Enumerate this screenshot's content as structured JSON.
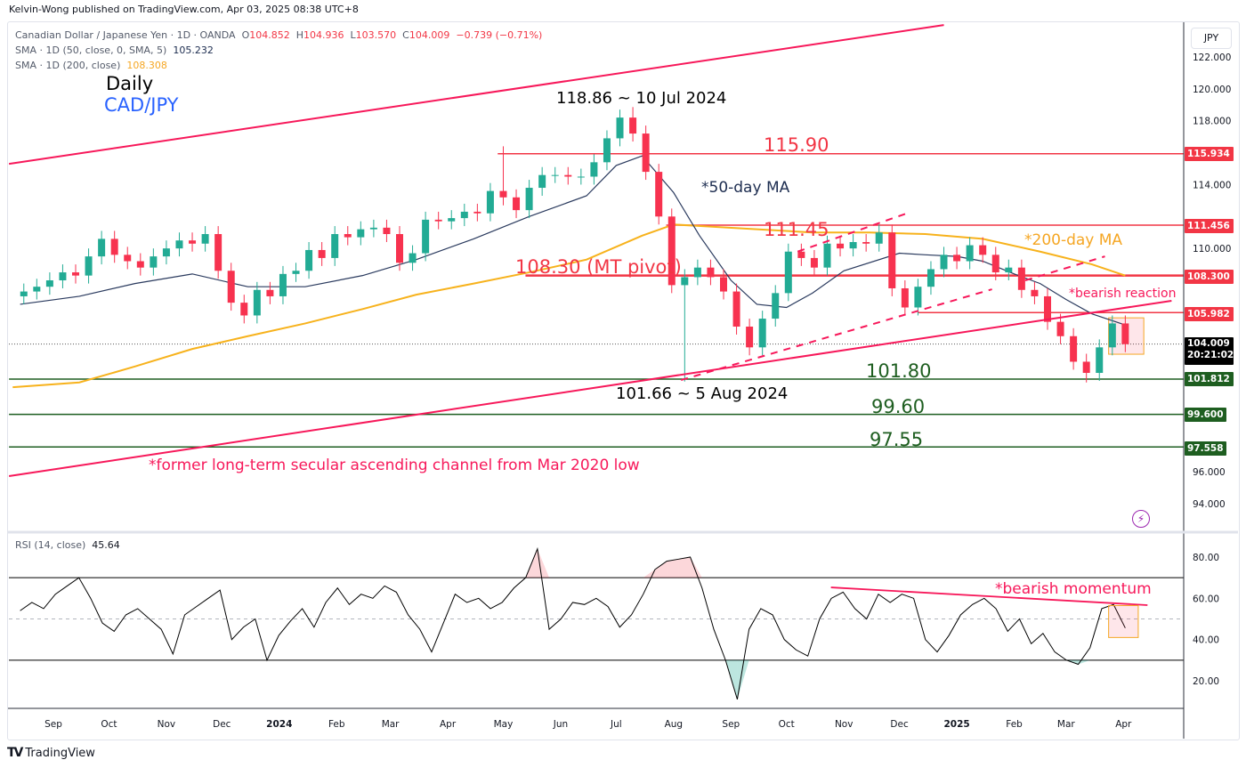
{
  "publisher": "Kelvin-Wong published on TradingView.com, Apr 03, 2025 08:38 UTC+8",
  "legend": {
    "symbol": "Canadian Dollar / Japanese Yen · 1D · OANDA",
    "o_label": "O",
    "o": "104.852",
    "h_label": "H",
    "h": "104.936",
    "l_label": "L",
    "l": "103.570",
    "c_label": "C",
    "c": "104.009",
    "change": "−0.739 (−0.71%)",
    "sma50_label": "SMA · 1D (50, close, 0, SMA, 5)",
    "sma50_value": "105.232",
    "sma200_label": "SMA · 1D (200, close)",
    "sma200_value": "108.308",
    "rsi_label": "RSI (14, close)",
    "rsi_value": "45.64"
  },
  "titles": {
    "timeframe": "Daily",
    "pair": "CAD/JPY"
  },
  "currency": "JPY",
  "annotations": {
    "high": "118.86 ~ 10 Jul 2024",
    "low": "101.66 ~ 5 Aug 2024",
    "lvl_115": "115.90",
    "lvl_111": "111.45",
    "lvl_108": "108.30 (MT pivot)",
    "lvl_101": "101.80",
    "lvl_99": "99.60",
    "lvl_97": "97.55",
    "ma50": "*50-day MA",
    "ma200": "*200-day MA",
    "bearish_reaction": "*bearish reaction",
    "channel": "*former long-term secular ascending channel from Mar 2020 low",
    "bearish_momentum": "*bearish momentum"
  },
  "price_badges": {
    "b115": "115.934",
    "b111": "111.456",
    "b108": "108.300",
    "b105": "105.982",
    "last": "104.009",
    "countdown": "20:21:02",
    "b101": "101.812",
    "b99": "99.600",
    "b97": "97.558"
  },
  "colors": {
    "up": "#22ab94",
    "down": "#f7324f",
    "sma50": "#2a3a5e",
    "sma200": "#f7b21c",
    "resist": "#f23645",
    "support": "#1e5e20",
    "channel": "#f7185a"
  },
  "branding": "TradingView",
  "chart_data": [
    {
      "type": "candlestick",
      "title": "CAD/JPY Daily (approx. weekly aggregation)",
      "week_start": "2023-08-14",
      "interval_days": 7,
      "first_open": 107.0,
      "closes": [
        107.3,
        107.6,
        108.0,
        108.5,
        108.3,
        109.5,
        110.6,
        109.6,
        109.2,
        108.8,
        109.5,
        110.0,
        110.5,
        110.3,
        110.9,
        108.6,
        106.6,
        105.8,
        107.4,
        107.0,
        108.4,
        108.6,
        109.9,
        109.4,
        110.9,
        110.7,
        111.2,
        111.3,
        110.9,
        109.1,
        109.7,
        111.8,
        111.7,
        111.9,
        112.3,
        112.2,
        113.6,
        113.2,
        112.4,
        113.8,
        114.6,
        114.6,
        114.5,
        114.5,
        115.4,
        116.9,
        118.2,
        117.2,
        114.8,
        112.0,
        107.7,
        108.2,
        108.8,
        108.2,
        107.3,
        105.1,
        103.8,
        105.6,
        107.2,
        109.8,
        109.4,
        108.8,
        110.3,
        110.0,
        110.4,
        110.3,
        111.0,
        107.5,
        106.3,
        107.6,
        108.7,
        109.6,
        109.2,
        110.2,
        109.6,
        108.5,
        108.8,
        107.4,
        107.0,
        105.4,
        104.5,
        102.9,
        102.2,
        103.8,
        105.3,
        104.0
      ],
      "extremes": {
        "2024-04-29": {
          "h": 116.4
        },
        "2024-07-08": {
          "h": 118.86
        },
        "2024-08-05": {
          "l": 101.66
        },
        "2025-03-10": {
          "l": 101.6
        }
      },
      "sma50": [
        [
          "2023-08-14",
          106.5
        ],
        [
          "2023-09-15",
          107.0
        ],
        [
          "2023-10-15",
          107.8
        ],
        [
          "2023-11-15",
          108.4
        ],
        [
          "2023-12-15",
          107.6
        ],
        [
          "2024-01-15",
          107.6
        ],
        [
          "2024-02-15",
          108.3
        ],
        [
          "2024-03-15",
          109.3
        ],
        [
          "2024-04-15",
          110.6
        ],
        [
          "2024-05-15",
          112.0
        ],
        [
          "2024-06-15",
          113.3
        ],
        [
          "2024-07-01",
          115.2
        ],
        [
          "2024-07-15",
          115.8
        ],
        [
          "2024-08-01",
          113.5
        ],
        [
          "2024-08-15",
          110.8
        ],
        [
          "2024-09-01",
          108.0
        ],
        [
          "2024-09-15",
          106.5
        ],
        [
          "2024-10-01",
          106.3
        ],
        [
          "2024-10-15",
          107.2
        ],
        [
          "2024-11-01",
          108.6
        ],
        [
          "2024-12-01",
          109.7
        ],
        [
          "2024-12-15",
          109.6
        ],
        [
          "2025-01-01",
          109.5
        ],
        [
          "2025-01-15",
          109.2
        ],
        [
          "2025-02-01",
          108.4
        ],
        [
          "2025-02-15",
          107.8
        ],
        [
          "2025-03-01",
          106.8
        ],
        [
          "2025-03-15",
          105.9
        ],
        [
          "2025-04-02",
          105.2
        ]
      ],
      "sma200": [
        [
          "2023-08-10",
          101.3
        ],
        [
          "2023-09-15",
          101.6
        ],
        [
          "2023-10-15",
          102.6
        ],
        [
          "2023-11-15",
          103.7
        ],
        [
          "2023-12-15",
          104.5
        ],
        [
          "2024-01-15",
          105.3
        ],
        [
          "2024-02-15",
          106.2
        ],
        [
          "2024-03-15",
          107.1
        ],
        [
          "2024-04-15",
          107.8
        ],
        [
          "2024-05-15",
          108.5
        ],
        [
          "2024-06-15",
          109.3
        ],
        [
          "2024-07-15",
          110.8
        ],
        [
          "2024-08-01",
          111.5
        ],
        [
          "2024-09-15",
          111.2
        ],
        [
          "2024-10-15",
          111.0
        ],
        [
          "2024-11-15",
          111.0
        ],
        [
          "2024-12-15",
          110.9
        ],
        [
          "2025-01-15",
          110.6
        ],
        [
          "2025-02-15",
          109.8
        ],
        [
          "2025-03-15",
          109.0
        ],
        [
          "2025-04-02",
          108.3
        ]
      ],
      "levels": [
        {
          "price": 115.934,
          "from": "2024-04-28",
          "kind": "resist"
        },
        {
          "price": 111.456,
          "from": "2024-07-28",
          "kind": "resist"
        },
        {
          "price": 108.3,
          "from": "2024-05-13",
          "kind": "resist",
          "bold": true
        },
        {
          "price": 105.982,
          "from": "2024-12-11",
          "kind": "resist"
        },
        {
          "price": 101.812,
          "from": "2023-08-08",
          "kind": "support"
        },
        {
          "price": 99.6,
          "from": "2023-08-08",
          "kind": "support"
        },
        {
          "price": 97.558,
          "from": "2023-08-08",
          "kind": "support"
        }
      ],
      "trendlines": [
        {
          "p1": [
            "2023-08-08",
            115.3
          ],
          "p2": [
            "2024-12-25",
            124.0
          ],
          "style": "solid"
        },
        {
          "p1": [
            "2023-08-08",
            95.73
          ],
          "p2": [
            "2025-04-27",
            106.72
          ],
          "style": "solid"
        },
        {
          "p1": [
            "2024-08-05",
            101.75
          ],
          "p2": [
            "2025-01-20",
            107.44
          ],
          "style": "dashed"
        },
        {
          "p1": [
            "2024-10-07",
            109.8
          ],
          "p2": [
            "2024-12-05",
            112.2
          ],
          "style": "dashed"
        },
        {
          "p1": [
            "2025-02-07",
            108.0
          ],
          "p2": [
            "2025-03-22",
            109.5
          ],
          "style": "dashed"
        }
      ],
      "highlight_box": {
        "from": "2025-03-24",
        "to": "2025-04-12",
        "top": 105.65,
        "bottom": 103.37
      },
      "last_price": 104.009,
      "y_ticks": [
        122,
        120,
        118,
        116,
        114,
        112,
        110,
        108,
        106,
        104,
        102,
        100,
        98,
        96,
        94
      ],
      "ylim": [
        94,
        122
      ]
    },
    {
      "type": "line",
      "title": "RSI (14, close)",
      "start": "2023-08-14",
      "end": "2025-04-02",
      "values": [
        54,
        58,
        55,
        62,
        66,
        70,
        60,
        48,
        44,
        52,
        55,
        50,
        45,
        33,
        52,
        56,
        60,
        64,
        40,
        46,
        50,
        30,
        42,
        49,
        55,
        46,
        58,
        65,
        57,
        62,
        60,
        66,
        63,
        52,
        45,
        34,
        48,
        62,
        58,
        60,
        55,
        58,
        65,
        70,
        84,
        45,
        50,
        58,
        57,
        60,
        56,
        46,
        52,
        62,
        74,
        78,
        79,
        80,
        65,
        45,
        30,
        11,
        45,
        55,
        52,
        40,
        35,
        32,
        50,
        60,
        63,
        55,
        50,
        62,
        58,
        62,
        60,
        40,
        34,
        42,
        52,
        57,
        60,
        55,
        44,
        50,
        38,
        43,
        34,
        30,
        28,
        36,
        55,
        57,
        45.6
      ],
      "bands": [
        70,
        50,
        30
      ],
      "y_ticks": [
        80,
        60,
        40,
        20
      ],
      "trendline": {
        "p1": [
          "2024-10-25",
          65.3
        ],
        "p2": [
          "2025-04-14",
          56.7
        ]
      },
      "highlight_box": {
        "from": "2025-03-24",
        "to": "2025-04-09",
        "top": 56.5,
        "bottom": 41
      }
    }
  ],
  "x_axis": [
    {
      "label": "Sep",
      "date": "2023-09-01"
    },
    {
      "label": "Oct",
      "date": "2023-10-01"
    },
    {
      "label": "Nov",
      "date": "2023-11-01"
    },
    {
      "label": "Dec",
      "date": "2023-12-01"
    },
    {
      "label": "2024",
      "date": "2024-01-01",
      "bold": true
    },
    {
      "label": "Feb",
      "date": "2024-02-01"
    },
    {
      "label": "Mar",
      "date": "2024-03-01"
    },
    {
      "label": "Apr",
      "date": "2024-04-01"
    },
    {
      "label": "May",
      "date": "2024-05-01"
    },
    {
      "label": "Jun",
      "date": "2024-06-01"
    },
    {
      "label": "Jul",
      "date": "2024-07-01"
    },
    {
      "label": "Aug",
      "date": "2024-08-01"
    },
    {
      "label": "Sep",
      "date": "2024-09-01"
    },
    {
      "label": "Oct",
      "date": "2024-10-01"
    },
    {
      "label": "Nov",
      "date": "2024-11-01"
    },
    {
      "label": "Dec",
      "date": "2024-12-01"
    },
    {
      "label": "2025",
      "date": "2025-01-01",
      "bold": true
    },
    {
      "label": "Feb",
      "date": "2025-02-01"
    },
    {
      "label": "Mar",
      "date": "2025-03-01"
    },
    {
      "label": "Apr",
      "date": "2025-04-01"
    }
  ]
}
